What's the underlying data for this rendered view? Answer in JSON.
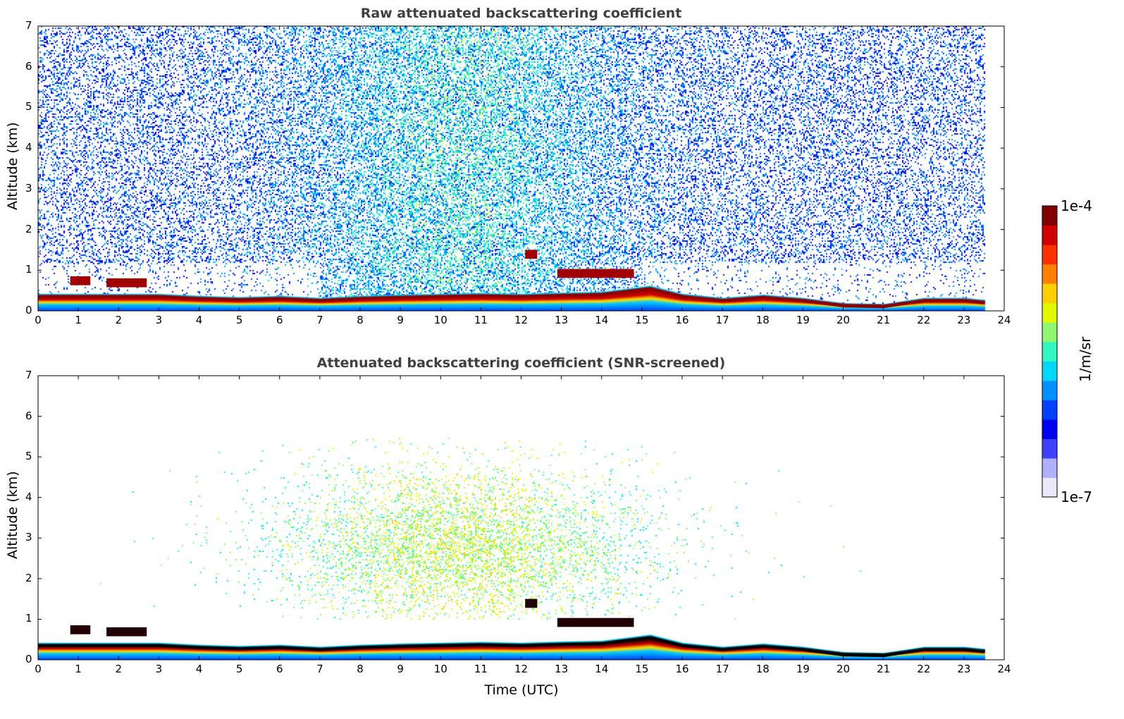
{
  "chart_data": [
    {
      "type": "heatmap",
      "title": "Raw attenuated backscattering coefficient",
      "xlabel": "",
      "ylabel": "Altitude (km)",
      "xlim": [
        0,
        24
      ],
      "ylim": [
        0,
        7
      ],
      "xticks": [
        "0",
        "1",
        "2",
        "3",
        "4",
        "5",
        "6",
        "7",
        "8",
        "9",
        "10",
        "11",
        "12",
        "13",
        "14",
        "15",
        "16",
        "17",
        "18",
        "19",
        "20",
        "21",
        "22",
        "23",
        "24"
      ],
      "yticks": [
        "0",
        "1",
        "2",
        "3",
        "4",
        "5",
        "6",
        "7"
      ],
      "noise_level": "high"
    },
    {
      "type": "heatmap",
      "title": "Attenuated backscattering coefficient (SNR-screened)",
      "xlabel": "Time (UTC)",
      "ylabel": "Altitude (km)",
      "xlim": [
        0,
        24
      ],
      "ylim": [
        0,
        7
      ],
      "xticks": [
        "0",
        "1",
        "2",
        "3",
        "4",
        "5",
        "6",
        "7",
        "8",
        "9",
        "10",
        "11",
        "12",
        "13",
        "14",
        "15",
        "16",
        "17",
        "18",
        "19",
        "20",
        "21",
        "22",
        "23",
        "24"
      ],
      "yticks": [
        "0",
        "1",
        "2",
        "3",
        "4",
        "5",
        "6",
        "7"
      ],
      "noise_level": "screened"
    }
  ],
  "layer": {
    "time": [
      0,
      0.8,
      1.7,
      2.7,
      3,
      4,
      5,
      6,
      7,
      8,
      9,
      10,
      11,
      12,
      13,
      14,
      14.8,
      15.2,
      16,
      17,
      18,
      19,
      20,
      21,
      22,
      23,
      23.5
    ],
    "top_km": [
      0.35,
      0.35,
      0.35,
      0.35,
      0.35,
      0.3,
      0.27,
      0.3,
      0.25,
      0.3,
      0.33,
      0.35,
      0.37,
      0.35,
      0.38,
      0.4,
      0.5,
      0.55,
      0.35,
      0.25,
      0.33,
      0.25,
      0.12,
      0.1,
      0.25,
      0.25,
      0.2
    ]
  },
  "elevated_layers": [
    {
      "start": 0.8,
      "end": 1.3,
      "alt_km": 0.75
    },
    {
      "start": 1.7,
      "end": 2.7,
      "alt_km": 0.7
    },
    {
      "start": 12.1,
      "end": 12.4,
      "alt_km": 1.4
    },
    {
      "start": 12.9,
      "end": 14.8,
      "alt_km": 0.93
    }
  ],
  "data_end_hour": 23.5,
  "colorbar": {
    "label": "1/m/sr",
    "min_label": "1e-7",
    "max_label": "1e-4",
    "colors": [
      "#e8e8f8",
      "#b0b0ff",
      "#4040ff",
      "#0000f0",
      "#0040ff",
      "#0090ff",
      "#00d8f8",
      "#30f8c0",
      "#90f870",
      "#e0f800",
      "#ffd000",
      "#ff8000",
      "#ff3000",
      "#d00000",
      "#800000"
    ]
  }
}
